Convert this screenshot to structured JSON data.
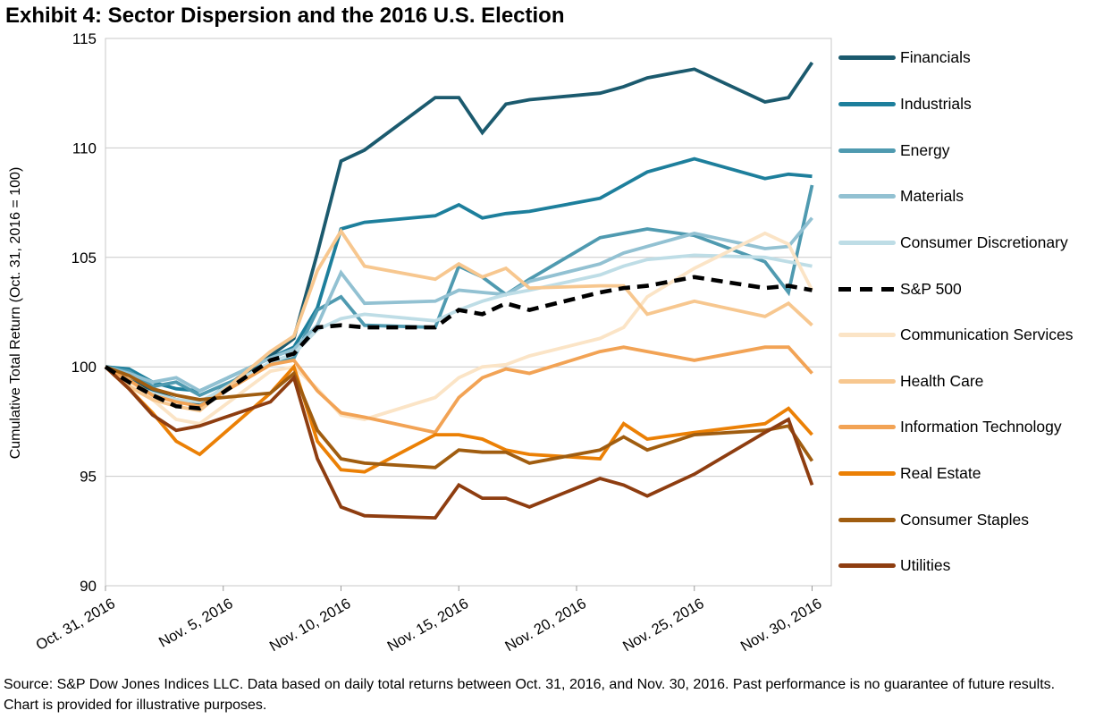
{
  "title": "Exhibit 4: Sector Dispersion and the 2016 U.S. Election",
  "y_axis_label": "Cumulative Total Return (Oct. 31, 2016 = 100)",
  "footer": "Source: S&P Dow Jones Indices LLC. Data based on daily total returns between Oct. 31, 2016, and Nov. 30, 2016. Past performance is no guarantee of future results. Chart is provided for illustrative purposes.",
  "chart_data": {
    "type": "line",
    "title": "Exhibit 4: Sector Dispersion and the 2016 U.S. Election",
    "xlabel": "",
    "ylabel": "Cumulative Total Return (Oct. 31, 2016 = 100)",
    "ylim": [
      90,
      115
    ],
    "y_ticks": [
      115,
      110,
      105,
      100,
      95,
      90
    ],
    "grid": true,
    "legend_position": "right",
    "x": [
      "Oct. 31",
      "Nov. 1",
      "Nov. 2",
      "Nov. 3",
      "Nov. 4",
      "Nov. 7",
      "Nov. 8",
      "Nov. 9",
      "Nov. 10",
      "Nov. 11",
      "Nov. 14",
      "Nov. 15",
      "Nov. 16",
      "Nov. 17",
      "Nov. 18",
      "Nov. 21",
      "Nov. 22",
      "Nov. 23",
      "Nov. 25",
      "Nov. 28",
      "Nov. 29",
      "Nov. 30"
    ],
    "x_day_offsets": [
      0,
      1,
      2,
      3,
      4,
      7,
      8,
      9,
      10,
      11,
      14,
      15,
      16,
      17,
      18,
      21,
      22,
      23,
      25,
      28,
      29,
      30
    ],
    "x_tick_labels": [
      "Oct. 31, 2016",
      "Nov. 5, 2016",
      "Nov. 10, 2016",
      "Nov. 15, 2016",
      "Nov. 20, 2016",
      "Nov. 25, 2016",
      "Nov. 30, 2016"
    ],
    "x_tick_day_offsets": [
      0,
      5,
      10,
      15,
      20,
      25,
      30
    ],
    "series": [
      {
        "name": "Financials",
        "slug": "financials",
        "color": "#1b5a6e",
        "dashed": false,
        "values": [
          100,
          99.4,
          98.9,
          98.5,
          98.3,
          100.5,
          101.3,
          105.2,
          109.4,
          109.9,
          112.3,
          112.3,
          110.7,
          112.0,
          112.2,
          112.5,
          112.8,
          113.2,
          113.6,
          112.1,
          112.3,
          113.9
        ]
      },
      {
        "name": "Industrials",
        "slug": "industrials",
        "color": "#1d7f9c",
        "dashed": false,
        "values": [
          100,
          99.9,
          99.3,
          99.0,
          98.9,
          100.4,
          100.9,
          102.7,
          106.3,
          106.6,
          106.9,
          107.4,
          106.8,
          107.0,
          107.1,
          107.7,
          108.3,
          108.9,
          109.5,
          108.6,
          108.8,
          108.7
        ]
      },
      {
        "name": "Energy",
        "slug": "energy",
        "color": "#4f9ab0",
        "dashed": false,
        "values": [
          100,
          99.8,
          99.1,
          99.3,
          98.7,
          100.1,
          100.4,
          102.6,
          103.2,
          101.9,
          101.8,
          104.6,
          104.1,
          103.3,
          104.0,
          105.9,
          106.1,
          106.3,
          106.0,
          104.8,
          103.4,
          108.3
        ]
      },
      {
        "name": "Materials",
        "slug": "materials",
        "color": "#92c1d2",
        "dashed": false,
        "values": [
          100,
          99.7,
          99.3,
          99.5,
          98.9,
          100.4,
          100.8,
          101.9,
          104.3,
          102.9,
          103.0,
          103.5,
          103.4,
          103.3,
          103.9,
          104.7,
          105.2,
          105.5,
          106.1,
          105.4,
          105.5,
          106.8
        ]
      },
      {
        "name": "Consumer Discretionary",
        "slug": "consumer-discretionary",
        "color": "#bedde6",
        "dashed": false,
        "values": [
          100,
          99.2,
          98.8,
          98.5,
          98.4,
          100.2,
          100.6,
          101.7,
          102.2,
          102.4,
          102.1,
          102.6,
          103.0,
          103.3,
          103.5,
          104.2,
          104.6,
          104.9,
          105.1,
          105.0,
          104.8,
          104.6
        ]
      },
      {
        "name": "S&P 500",
        "slug": "sp-500",
        "color": "#000000",
        "dashed": true,
        "values": [
          100,
          99.3,
          98.7,
          98.2,
          98.1,
          100.3,
          100.6,
          101.8,
          101.9,
          101.8,
          101.8,
          102.6,
          102.4,
          102.9,
          102.6,
          103.4,
          103.6,
          103.7,
          104.1,
          103.6,
          103.7,
          103.5
        ]
      },
      {
        "name": "Communication Services",
        "slug": "communication-services",
        "color": "#fbe4c6",
        "dashed": false,
        "values": [
          100,
          99.3,
          98.5,
          97.6,
          97.4,
          99.8,
          100.0,
          99.0,
          97.8,
          97.6,
          98.6,
          99.5,
          100.0,
          100.1,
          100.5,
          101.3,
          101.8,
          103.2,
          104.5,
          106.1,
          105.6,
          103.5
        ]
      },
      {
        "name": "Health Care",
        "slug": "health-care",
        "color": "#f7c78f",
        "dashed": false,
        "values": [
          100,
          99.1,
          98.5,
          98.2,
          98.0,
          100.7,
          101.4,
          104.4,
          106.2,
          104.6,
          104.0,
          104.7,
          104.1,
          104.5,
          103.6,
          103.7,
          103.7,
          102.4,
          103.0,
          102.3,
          102.9,
          101.9
        ]
      },
      {
        "name": "Information Technology",
        "slug": "information-technology",
        "color": "#f2a355",
        "dashed": false,
        "values": [
          100,
          99.4,
          98.7,
          98.4,
          98.2,
          100.1,
          100.3,
          98.9,
          97.9,
          97.7,
          97.0,
          98.6,
          99.5,
          99.9,
          99.7,
          100.7,
          100.9,
          100.7,
          100.3,
          100.9,
          100.9,
          99.7
        ]
      },
      {
        "name": "Real Estate",
        "slug": "real-estate",
        "color": "#eb8005",
        "dashed": false,
        "values": [
          100,
          99.0,
          97.9,
          96.6,
          96.0,
          98.8,
          100.0,
          96.6,
          95.3,
          95.2,
          96.9,
          96.9,
          96.7,
          96.2,
          96.0,
          95.8,
          97.4,
          96.7,
          97.0,
          97.4,
          98.1,
          96.9
        ]
      },
      {
        "name": "Consumer Staples",
        "slug": "consumer-staples",
        "color": "#a05d10",
        "dashed": false,
        "values": [
          100,
          99.6,
          99.0,
          98.7,
          98.5,
          98.8,
          99.7,
          97.1,
          95.8,
          95.6,
          95.4,
          96.2,
          96.1,
          96.1,
          95.6,
          96.2,
          96.8,
          96.2,
          96.9,
          97.1,
          97.3,
          95.7
        ]
      },
      {
        "name": "Utilities",
        "slug": "utilities",
        "color": "#8e3d10",
        "dashed": false,
        "values": [
          100,
          99.0,
          97.8,
          97.1,
          97.3,
          98.4,
          99.5,
          95.8,
          93.6,
          93.2,
          93.1,
          94.6,
          94.0,
          94.0,
          93.6,
          94.9,
          94.6,
          94.1,
          95.1,
          97.0,
          97.6,
          94.6
        ]
      }
    ]
  }
}
